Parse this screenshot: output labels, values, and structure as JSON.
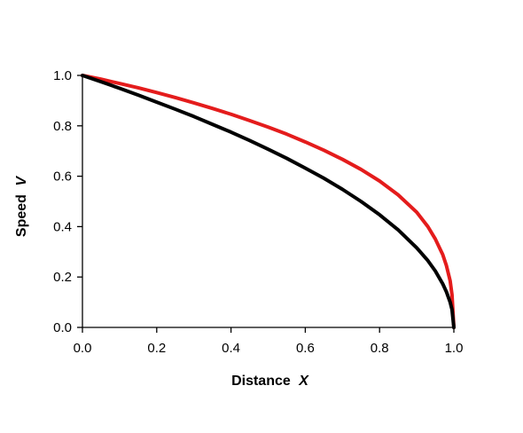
{
  "chart_data": {
    "type": "line",
    "title": "",
    "xlabel": "Distance",
    "xlabel_var": "X",
    "ylabel": "Speed",
    "ylabel_var": "V",
    "xlim": [
      0,
      1
    ],
    "ylim": [
      0,
      1
    ],
    "x_ticks": [
      0,
      0.2,
      0.4,
      0.6,
      0.8,
      1.0
    ],
    "y_ticks": [
      0,
      0.2,
      0.4,
      0.6,
      0.8,
      1.0
    ],
    "x_tick_labels": [
      "0.0",
      "0.2",
      "0.4",
      "0.6",
      "0.8",
      "1.0"
    ],
    "y_tick_labels": [
      "0.0",
      "0.2",
      "0.4",
      "0.6",
      "0.8",
      "1.0"
    ],
    "grid": false,
    "legend": "none",
    "series": [
      {
        "color": "#e41c1c",
        "x": [
          0,
          0.05,
          0.1,
          0.15,
          0.2,
          0.25,
          0.3,
          0.35,
          0.4,
          0.45,
          0.5,
          0.55,
          0.6,
          0.65,
          0.7,
          0.75,
          0.8,
          0.85,
          0.9,
          0.93,
          0.95,
          0.97,
          0.98,
          0.99,
          0.995,
          1.0
        ],
        "y": [
          1.0,
          0.985,
          0.968,
          0.951,
          0.932,
          0.912,
          0.891,
          0.869,
          0.846,
          0.821,
          0.795,
          0.767,
          0.736,
          0.703,
          0.667,
          0.627,
          0.581,
          0.526,
          0.457,
          0.4,
          0.351,
          0.289,
          0.245,
          0.185,
          0.13,
          0.0
        ]
      },
      {
        "color": "#000000",
        "x": [
          0,
          0.05,
          0.1,
          0.15,
          0.2,
          0.25,
          0.3,
          0.35,
          0.4,
          0.45,
          0.5,
          0.55,
          0.6,
          0.65,
          0.7,
          0.75,
          0.8,
          0.85,
          0.9,
          0.93,
          0.95,
          0.97,
          0.98,
          0.99,
          0.995,
          1.0
        ],
        "y": [
          1.0,
          0.975,
          0.949,
          0.922,
          0.894,
          0.866,
          0.837,
          0.806,
          0.775,
          0.742,
          0.707,
          0.671,
          0.632,
          0.592,
          0.548,
          0.5,
          0.447,
          0.387,
          0.316,
          0.265,
          0.224,
          0.173,
          0.141,
          0.1,
          0.071,
          0.0
        ]
      }
    ]
  }
}
